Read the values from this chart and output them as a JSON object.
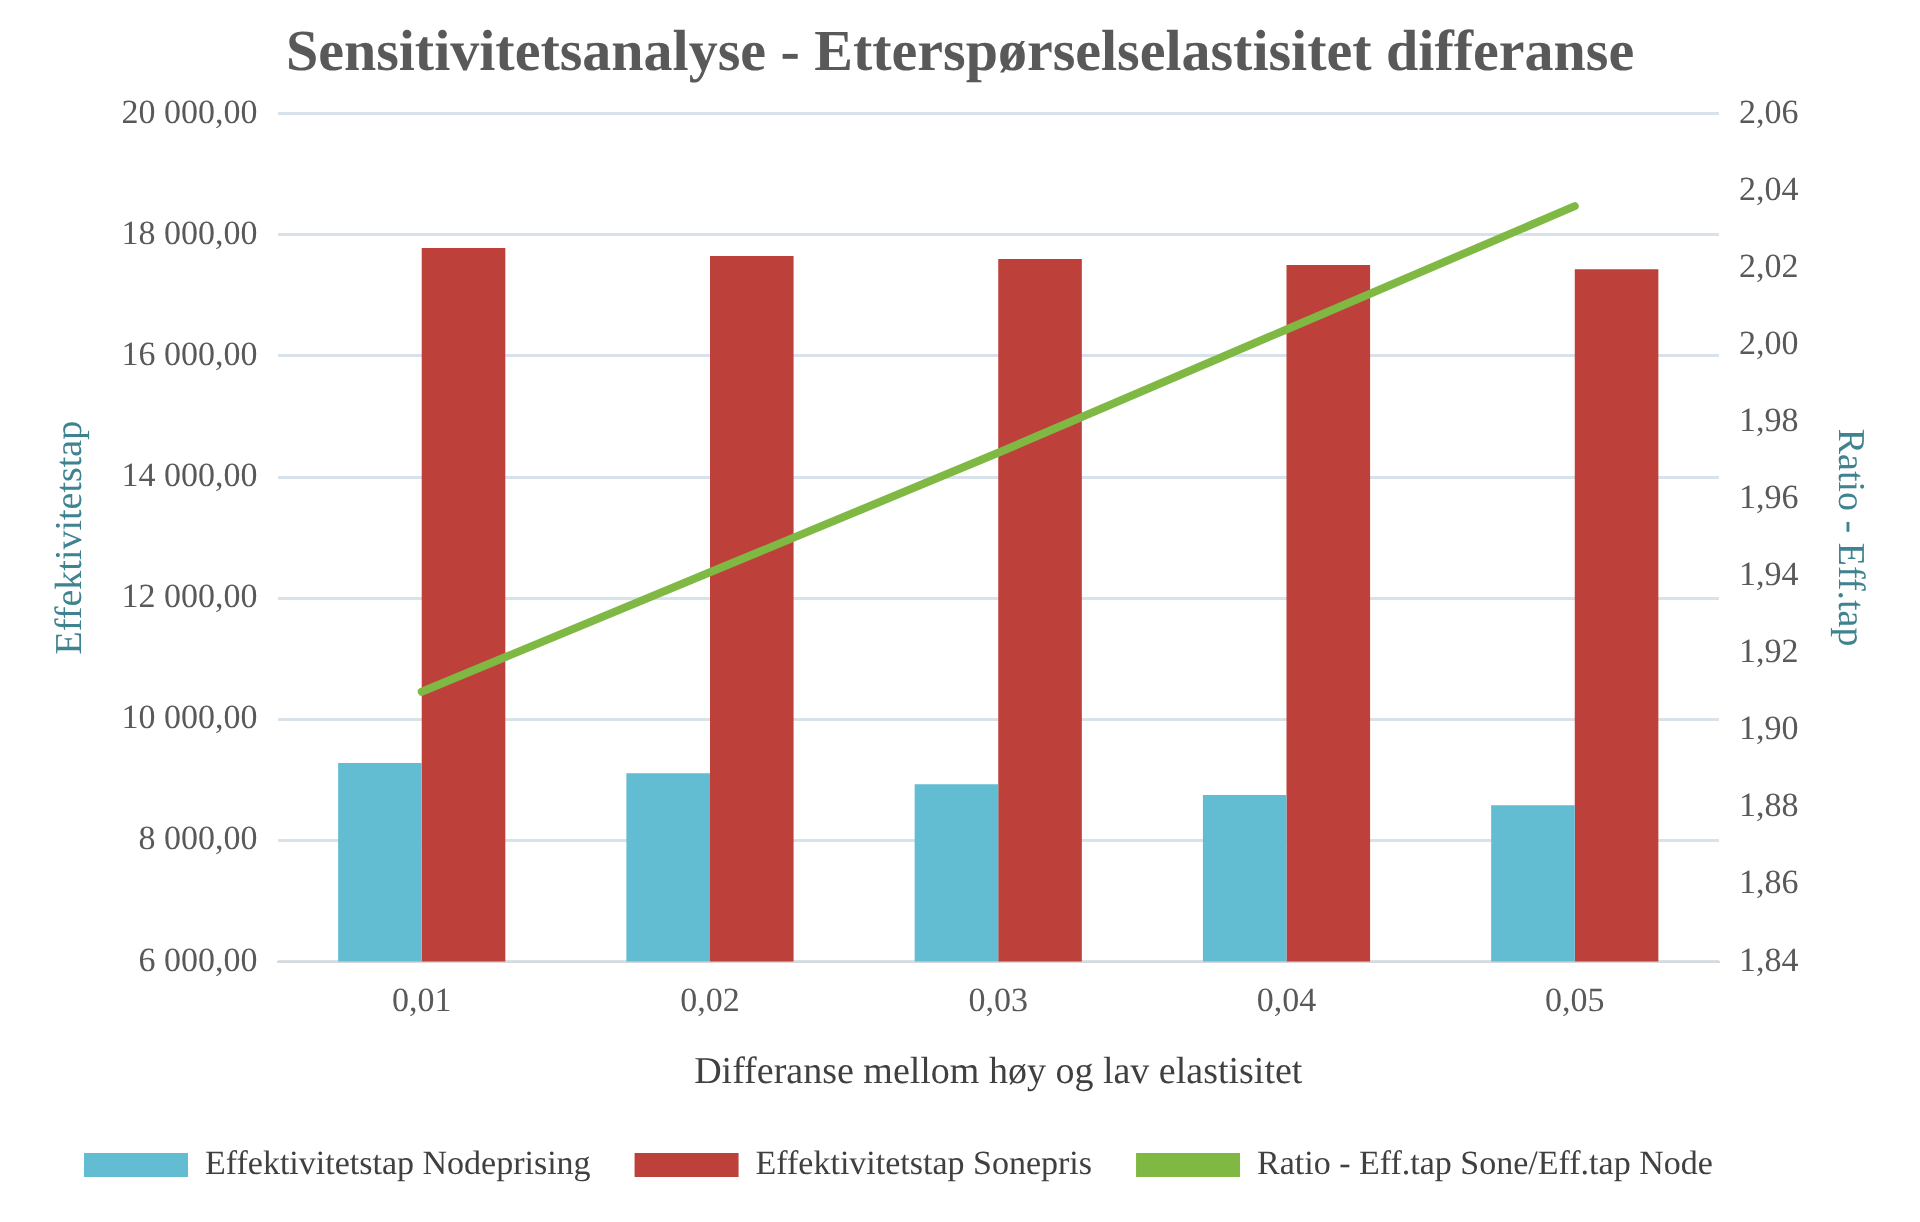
{
  "chart_data": {
    "type": "bar",
    "title": "Sensitivitetsanalyse - Etterspørselselastisitet differanse",
    "xlabel": "Differanse mellom høy og lav elastisitet",
    "ylabel": "Effektivitetstap",
    "y2label": "Ratio - Eff.tap",
    "categories": [
      "0,01",
      "0,02",
      "0,03",
      "0,04",
      "0,05"
    ],
    "series": [
      {
        "name": "Effektivitetstap Nodeprising",
        "color": "#62bcd2",
        "values": [
          9280,
          9110,
          8930,
          8750,
          8580
        ]
      },
      {
        "name": "Effektivitetstap Sonepris",
        "color": "#bd403a",
        "values": [
          17780,
          17650,
          17600,
          17500,
          17430
        ]
      },
      {
        "name": "Ratio - Eff.tap Sone/Eff.tap Node",
        "type": "line",
        "axis": "y2",
        "color": "#7fb944",
        "values": [
          1.91,
          1.941,
          1.972,
          2.004,
          2.036
        ]
      }
    ],
    "ylim": [
      6000,
      20000
    ],
    "yticks": [
      {
        "value": 6000,
        "label": "6 000,00"
      },
      {
        "value": 8000,
        "label": "8 000,00"
      },
      {
        "value": 10000,
        "label": "10 000,00"
      },
      {
        "value": 12000,
        "label": "12 000,00"
      },
      {
        "value": 14000,
        "label": "14 000,00"
      },
      {
        "value": 16000,
        "label": "16 000,00"
      },
      {
        "value": 18000,
        "label": "18 000,00"
      },
      {
        "value": 20000,
        "label": "20 000,00"
      }
    ],
    "y2lim": [
      1.84,
      2.06
    ],
    "y2ticks": [
      {
        "value": 1.84,
        "label": "1,84"
      },
      {
        "value": 1.86,
        "label": "1,86"
      },
      {
        "value": 1.88,
        "label": "1,88"
      },
      {
        "value": 1.9,
        "label": "1,90"
      },
      {
        "value": 1.92,
        "label": "1,92"
      },
      {
        "value": 1.94,
        "label": "1,94"
      },
      {
        "value": 1.96,
        "label": "1,96"
      },
      {
        "value": 1.98,
        "label": "1,98"
      },
      {
        "value": 2.0,
        "label": "2,00"
      },
      {
        "value": 2.02,
        "label": "2,02"
      },
      {
        "value": 2.04,
        "label": "2,04"
      },
      {
        "value": 2.06,
        "label": "2,06"
      }
    ],
    "grid": "y",
    "legend": "bottom",
    "marker": "none"
  }
}
